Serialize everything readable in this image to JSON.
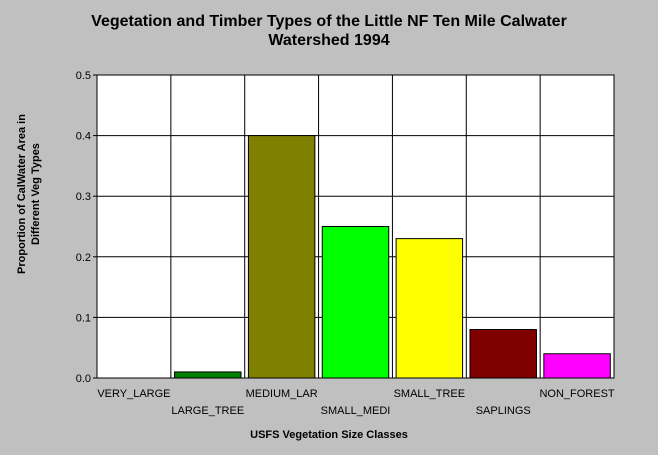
{
  "chart_data": {
    "type": "bar",
    "title_line1": "Vegetation and Timber Types of the Little NF Ten Mile Calwater",
    "title_line2": "Watershed 1994",
    "xlabel": "USFS Vegetation Size Classes",
    "ylabel_line1": "Proportion of CalWater Area in",
    "ylabel_line2": "Different Veg Types",
    "categories": [
      "VERY_LARGE",
      "LARGE_TREE",
      "MEDIUM_LAR",
      "SMALL_MEDI",
      "SMALL_TREE",
      "SAPLINGS",
      "NON_FOREST"
    ],
    "values": [
      0,
      0.01,
      0.4,
      0.25,
      0.23,
      0.08,
      0.04
    ],
    "colors": [
      "#000000",
      "#008000",
      "#808000",
      "#00ff00",
      "#ffff00",
      "#800000",
      "#ff00ff"
    ],
    "yticks": [
      "0.0",
      "0.1",
      "0.2",
      "0.3",
      "0.4",
      "0.5"
    ],
    "ylim": [
      0,
      0.5
    ],
    "grid": true,
    "plot_background": "#ffffff",
    "page_background": "#c0c0c0"
  }
}
